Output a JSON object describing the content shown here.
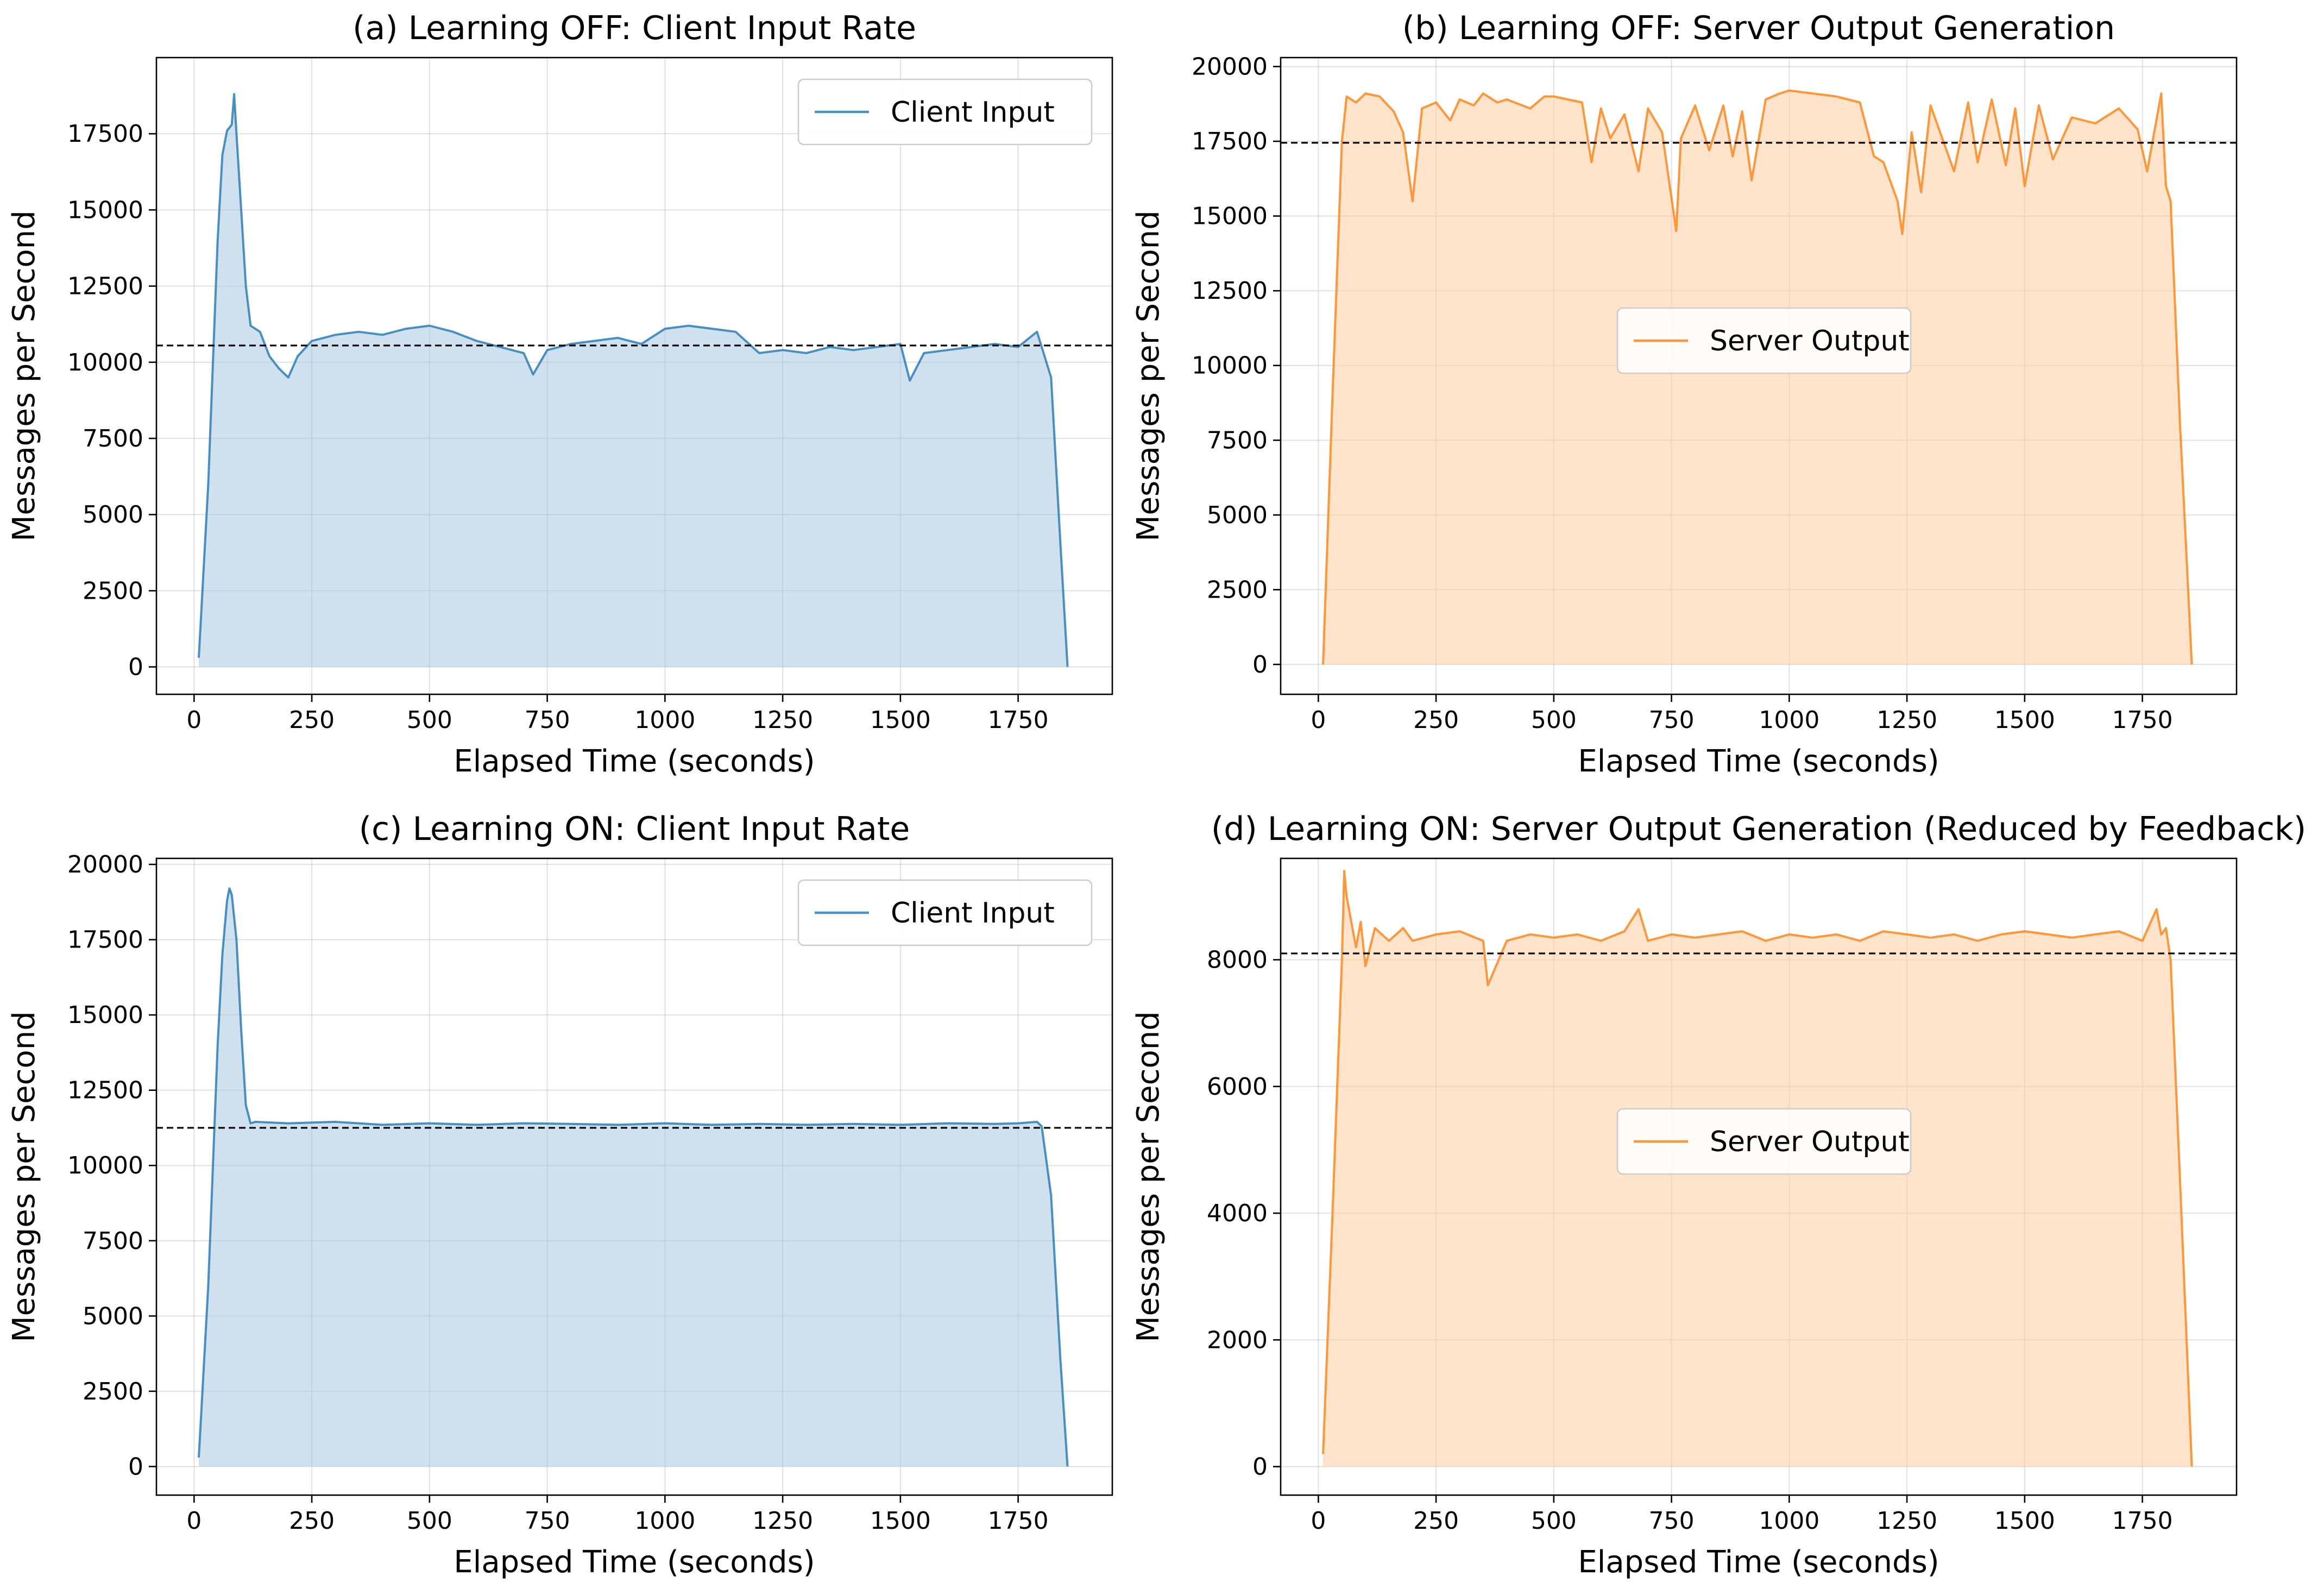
{
  "chart_data": [
    {
      "type": "area",
      "title": "(a) Learning OFF: Client Input Rate",
      "xlabel": "Elapsed Time (seconds)",
      "ylabel": "Messages per Second",
      "xlim": [
        -80,
        1950
      ],
      "ylim": [
        -900,
        20000
      ],
      "xticks": [
        0,
        250,
        500,
        750,
        1000,
        1250,
        1500,
        1750
      ],
      "xtick_labels": [
        "0",
        "250",
        "500",
        "750",
        "1000",
        "1250",
        "1500",
        "1750"
      ],
      "yticks": [
        0,
        2500,
        5000,
        7500,
        10000,
        12500,
        15000,
        17500
      ],
      "ytick_labels": [
        "0",
        "2500",
        "5000",
        "7500",
        "10000",
        "12500",
        "15000",
        "17500"
      ],
      "grid": true,
      "legend_position": "upper right",
      "mean_line": 10550,
      "color": "#1f77b4",
      "series": [
        {
          "name": "Client Input",
          "x": [
            10,
            30,
            50,
            60,
            70,
            80,
            85,
            90,
            100,
            110,
            120,
            140,
            160,
            180,
            200,
            220,
            250,
            300,
            350,
            400,
            450,
            500,
            550,
            600,
            650,
            700,
            720,
            750,
            800,
            850,
            900,
            950,
            1000,
            1050,
            1100,
            1150,
            1200,
            1250,
            1300,
            1350,
            1400,
            1450,
            1500,
            1520,
            1550,
            1600,
            1650,
            1700,
            1750,
            1790,
            1800,
            1820,
            1840,
            1855
          ],
          "y": [
            300,
            6000,
            14000,
            16800,
            17600,
            17800,
            18800,
            17500,
            15000,
            12500,
            11200,
            11000,
            10200,
            9800,
            9500,
            10200,
            10700,
            10900,
            11000,
            10900,
            11100,
            11200,
            11000,
            10700,
            10500,
            10300,
            9600,
            10400,
            10600,
            10700,
            10800,
            10600,
            11100,
            11200,
            11100,
            11000,
            10300,
            10400,
            10300,
            10500,
            10400,
            10500,
            10600,
            9400,
            10300,
            10400,
            10500,
            10600,
            10500,
            11000,
            10500,
            9500,
            4000,
            0
          ]
        }
      ]
    },
    {
      "type": "area",
      "title": "(b) Learning OFF: Server Output Generation",
      "xlabel": "Elapsed Time (seconds)",
      "ylabel": "Messages per Second",
      "xlim": [
        -80,
        1950
      ],
      "ylim": [
        -1000,
        20300
      ],
      "xticks": [
        0,
        250,
        500,
        750,
        1000,
        1250,
        1500,
        1750
      ],
      "xtick_labels": [
        "0",
        "250",
        "500",
        "750",
        "1000",
        "1250",
        "1500",
        "1750"
      ],
      "yticks": [
        0,
        2500,
        5000,
        7500,
        10000,
        12500,
        15000,
        17500,
        20000
      ],
      "ytick_labels": [
        "0",
        "2500",
        "5000",
        "7500",
        "10000",
        "12500",
        "15000",
        "17500",
        "20000"
      ],
      "grid": true,
      "legend_position": "center",
      "mean_line": 17450,
      "color": "#ff7f0e",
      "series": [
        {
          "name": "Server Output",
          "x": [
            10,
            30,
            50,
            60,
            80,
            100,
            130,
            160,
            180,
            200,
            220,
            250,
            280,
            300,
            330,
            350,
            380,
            400,
            450,
            480,
            500,
            530,
            560,
            580,
            600,
            620,
            650,
            680,
            700,
            730,
            760,
            770,
            800,
            830,
            860,
            880,
            900,
            920,
            950,
            980,
            1000,
            1050,
            1100,
            1150,
            1180,
            1200,
            1230,
            1240,
            1260,
            1280,
            1300,
            1350,
            1380,
            1400,
            1430,
            1460,
            1480,
            1500,
            1530,
            1560,
            1600,
            1650,
            1700,
            1740,
            1760,
            1790,
            1800,
            1810,
            1830,
            1855
          ],
          "y": [
            0,
            9000,
            17500,
            19000,
            18800,
            19100,
            19000,
            18500,
            17800,
            15500,
            18600,
            18800,
            18200,
            18900,
            18700,
            19100,
            18800,
            18900,
            18600,
            19000,
            19000,
            18900,
            18800,
            16800,
            18600,
            17600,
            18400,
            16500,
            18600,
            17800,
            14500,
            17600,
            18700,
            17200,
            18700,
            17000,
            18500,
            16200,
            18900,
            19100,
            19200,
            19100,
            19000,
            18800,
            17000,
            16800,
            15500,
            14400,
            17800,
            15800,
            18700,
            16500,
            18800,
            16800,
            18900,
            16700,
            18600,
            16000,
            18700,
            16900,
            18300,
            18100,
            18600,
            17900,
            16500,
            19100,
            16000,
            15500,
            8000,
            0
          ]
        }
      ]
    },
    {
      "type": "area",
      "title": "(c) Learning ON: Client Input Rate",
      "xlabel": "Elapsed Time (seconds)",
      "ylabel": "Messages per Second",
      "xlim": [
        -80,
        1950
      ],
      "ylim": [
        -950,
        20200
      ],
      "xticks": [
        0,
        250,
        500,
        750,
        1000,
        1250,
        1500,
        1750
      ],
      "xtick_labels": [
        "0",
        "250",
        "500",
        "750",
        "1000",
        "1250",
        "1500",
        "1750"
      ],
      "yticks": [
        0,
        2500,
        5000,
        7500,
        10000,
        12500,
        15000,
        17500,
        20000
      ],
      "ytick_labels": [
        "0",
        "2500",
        "5000",
        "7500",
        "10000",
        "12500",
        "15000",
        "17500",
        "20000"
      ],
      "grid": true,
      "legend_position": "upper right",
      "mean_line": 11250,
      "color": "#1f77b4",
      "series": [
        {
          "name": "Client Input",
          "x": [
            10,
            30,
            50,
            60,
            70,
            75,
            80,
            90,
            100,
            110,
            120,
            130,
            200,
            300,
            400,
            500,
            600,
            700,
            800,
            900,
            1000,
            1100,
            1200,
            1300,
            1400,
            1500,
            1600,
            1700,
            1750,
            1790,
            1800,
            1820,
            1840,
            1855
          ],
          "y": [
            300,
            6000,
            14000,
            17000,
            18800,
            19200,
            19000,
            17500,
            14500,
            12000,
            11400,
            11450,
            11400,
            11450,
            11350,
            11400,
            11350,
            11400,
            11380,
            11350,
            11400,
            11350,
            11380,
            11350,
            11380,
            11350,
            11400,
            11380,
            11400,
            11450,
            11300,
            9000,
            3500,
            0
          ]
        }
      ]
    },
    {
      "type": "area",
      "title": "(d) Learning ON: Server Output Generation (Reduced by Feedback)",
      "xlabel": "Elapsed Time (seconds)",
      "ylabel": "Messages per Second",
      "xlim": [
        -80,
        1950
      ],
      "ylim": [
        -450,
        9600
      ],
      "xticks": [
        0,
        250,
        500,
        750,
        1000,
        1250,
        1500,
        1750
      ],
      "xtick_labels": [
        "0",
        "250",
        "500",
        "750",
        "1000",
        "1250",
        "1500",
        "1750"
      ],
      "yticks": [
        0,
        2000,
        4000,
        6000,
        8000
      ],
      "ytick_labels": [
        "0",
        "2000",
        "4000",
        "6000",
        "8000"
      ],
      "grid": true,
      "legend_position": "center",
      "mean_line": 8100,
      "color": "#ff7f0e",
      "series": [
        {
          "name": "Server Output",
          "x": [
            10,
            30,
            50,
            55,
            60,
            70,
            80,
            90,
            100,
            120,
            150,
            180,
            200,
            250,
            300,
            350,
            360,
            400,
            450,
            500,
            550,
            600,
            650,
            680,
            700,
            750,
            800,
            850,
            900,
            950,
            1000,
            1050,
            1100,
            1150,
            1200,
            1250,
            1300,
            1350,
            1400,
            1450,
            1500,
            1550,
            1600,
            1650,
            1700,
            1750,
            1780,
            1790,
            1800,
            1810,
            1830,
            1855
          ],
          "y": [
            200,
            4000,
            8000,
            9400,
            9000,
            8600,
            8200,
            8600,
            7900,
            8500,
            8300,
            8500,
            8300,
            8400,
            8450,
            8300,
            7600,
            8300,
            8400,
            8350,
            8400,
            8300,
            8450,
            8800,
            8300,
            8400,
            8350,
            8400,
            8450,
            8300,
            8400,
            8350,
            8400,
            8300,
            8450,
            8400,
            8350,
            8400,
            8300,
            8400,
            8450,
            8400,
            8350,
            8400,
            8450,
            8300,
            8800,
            8400,
            8500,
            8000,
            4500,
            0
          ]
        }
      ]
    }
  ]
}
